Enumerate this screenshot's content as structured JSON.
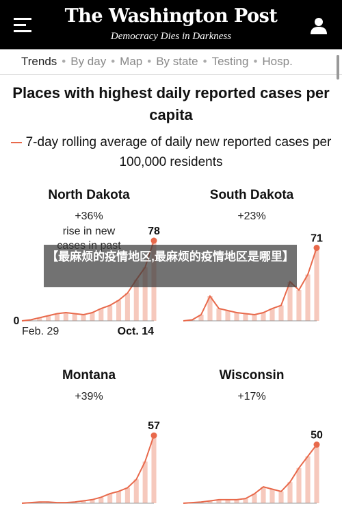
{
  "header": {
    "logo": "The Washington Post",
    "tagline": "Democracy Dies in Darkness"
  },
  "tabs": [
    {
      "label": "Trends",
      "active": true
    },
    {
      "label": "By day"
    },
    {
      "label": "Map"
    },
    {
      "label": "By state"
    },
    {
      "label": "Testing"
    },
    {
      "label": "Hosp."
    }
  ],
  "title": "Places with highest daily reported cases per capita",
  "subtitle": "7-day rolling average of daily new reported cases per 100,000 residents",
  "overlay_text": "【最麻烦的疫情地区,最麻烦的疫情地区是哪里】",
  "colors": {
    "line": "#e8694b",
    "bars": "#f6c9bd"
  },
  "chart_data": [
    {
      "type": "line",
      "title": "North Dakota",
      "change": "+36%",
      "annotation": "rise in new cases in past",
      "end_value_label": "78",
      "y_min_label": "0",
      "x_start_label": "Feb. 29",
      "x_end_label": "Oct. 14",
      "ylim": [
        0,
        80
      ],
      "x": [
        "Feb. 29",
        "Mar. 15",
        "Apr. 1",
        "Apr. 15",
        "May 1",
        "May 15",
        "Jun. 1",
        "Jun. 15",
        "Jul. 1",
        "Jul. 15",
        "Aug. 1",
        "Aug. 15",
        "Sep. 1",
        "Sep. 15",
        "Oct. 1",
        "Oct. 14"
      ],
      "values": [
        0,
        1,
        3,
        5,
        7,
        8,
        7,
        6,
        8,
        12,
        15,
        20,
        27,
        40,
        52,
        78
      ]
    },
    {
      "type": "line",
      "title": "South Dakota",
      "change": "+23%",
      "end_value_label": "71",
      "ylim": [
        0,
        80
      ],
      "x": [
        "Feb. 29",
        "Mar. 15",
        "Apr. 1",
        "Apr. 15",
        "May 1",
        "May 15",
        "Jun. 1",
        "Jun. 15",
        "Jul. 1",
        "Jul. 15",
        "Aug. 1",
        "Aug. 15",
        "Sep. 1",
        "Sep. 15",
        "Oct. 1",
        "Oct. 14"
      ],
      "values": [
        0,
        1,
        6,
        24,
        12,
        10,
        8,
        7,
        6,
        8,
        12,
        15,
        38,
        30,
        45,
        71
      ]
    },
    {
      "type": "line",
      "title": "Montana",
      "change": "+39%",
      "end_value_label": "57",
      "ylim": [
        0,
        60
      ],
      "x": [
        "Feb. 29",
        "Mar. 15",
        "Apr. 1",
        "Apr. 15",
        "May 1",
        "May 15",
        "Jun. 1",
        "Jun. 15",
        "Jul. 1",
        "Jul. 15",
        "Aug. 1",
        "Aug. 15",
        "Sep. 1",
        "Sep. 15",
        "Oct. 1",
        "Oct. 14"
      ],
      "values": [
        0,
        0.5,
        1,
        1,
        0.5,
        0.5,
        1,
        2,
        3,
        5,
        8,
        10,
        13,
        20,
        35,
        57
      ]
    },
    {
      "type": "line",
      "title": "Wisconsin",
      "change": "+17%",
      "end_value_label": "50",
      "ylim": [
        0,
        55
      ],
      "x": [
        "Feb. 29",
        "Mar. 15",
        "Apr. 1",
        "Apr. 15",
        "May 1",
        "May 15",
        "Jun. 1",
        "Jun. 15",
        "Jul. 1",
        "Jul. 15",
        "Aug. 1",
        "Aug. 15",
        "Sep. 1",
        "Sep. 15",
        "Oct. 1",
        "Oct. 14"
      ],
      "values": [
        0,
        0.5,
        1,
        2,
        3,
        3,
        3,
        4,
        8,
        14,
        12,
        10,
        18,
        30,
        40,
        50
      ]
    }
  ]
}
